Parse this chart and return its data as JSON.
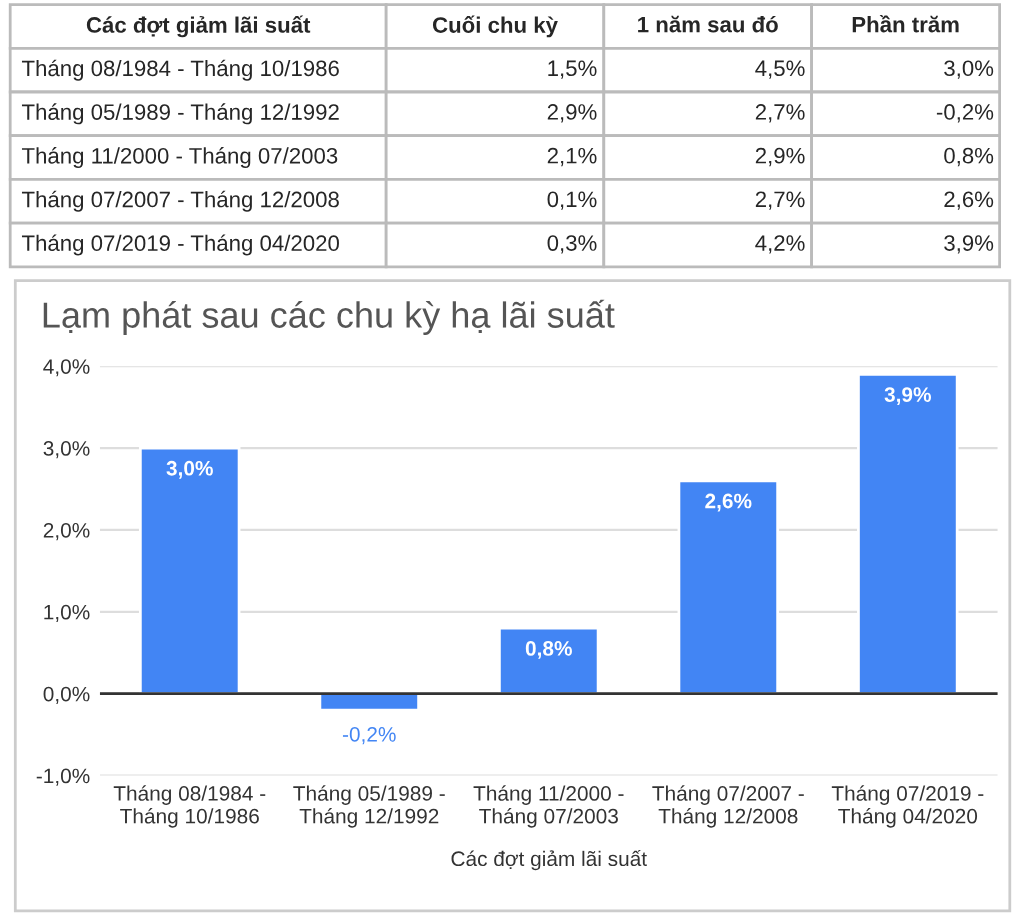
{
  "chart_data": [
    {
      "type": "other",
      "categories": [
        "Các đợt giảm lãi suất",
        "Cuối chu kỳ",
        "1 năm sau đó",
        "Phần trăm"
      ],
      "annotations": [
        "Tháng 08/1984 - Tháng 10/1986",
        "1,5%",
        "4,5%",
        "3,0%",
        "Tháng 05/1989 - Tháng 12/1992",
        "2,9%",
        "2,7%",
        "-0,2%",
        "Tháng 11/2000 - Tháng 07/2003",
        "2,1%",
        "2,9%",
        "0,8%",
        "Tháng 07/2007 - Tháng 12/2008",
        "0,1%",
        "2,7%",
        "2,6%",
        "Tháng 07/2019 - Tháng 04/2020",
        "0,3%",
        "4,2%",
        "3,9%"
      ]
    },
    {
      "type": "bar",
      "title": "Lạm phát sau các chu kỳ hạ lãi suất",
      "xlabel": "Các đợt giảm lãi suất",
      "categories": [
        "Tháng 08/1984 -\nTháng 10/1986",
        "Tháng 05/1989 -\nTháng 12/1992",
        "Tháng 11/2000 -\nTháng 07/2003",
        "Tháng 07/2007 -\nTháng 12/2008",
        "Tháng 07/2019 -\nTháng 04/2020"
      ],
      "values": [
        3.0,
        -0.2,
        0.8,
        2.6,
        3.9
      ],
      "value_labels": [
        "3,0%",
        "-0,2%",
        "0,8%",
        "2,6%",
        "3,9%"
      ],
      "color": "#4285f4",
      "ylim": [
        -1,
        4
      ],
      "yticks": [
        {
          "value": -1,
          "label": "-1,0%"
        },
        {
          "value": 0,
          "label": "0,0%"
        },
        {
          "value": 1,
          "label": "1,0%"
        },
        {
          "value": 2,
          "label": "2,0%"
        },
        {
          "value": 3,
          "label": "3,0%"
        },
        {
          "value": 4,
          "label": "4,0%"
        }
      ],
      "grid": "y",
      "legend": false
    }
  ]
}
